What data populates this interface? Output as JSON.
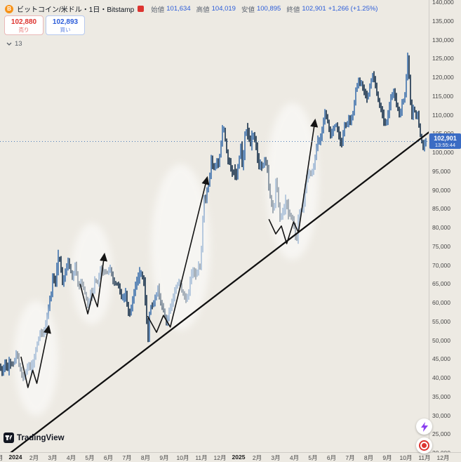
{
  "header": {
    "symbol_title": "ビットコイン/米ドル・1日・Bitstamp",
    "ohlc": {
      "open_label": "始値",
      "open": "101,634",
      "high_label": "高値",
      "high": "104,019",
      "low_label": "安値",
      "low": "100,895",
      "close_label": "終値",
      "close": "102,901",
      "change": "+1,266 (+1.25%)"
    },
    "sell_button": {
      "price": "102,880",
      "label": "売り"
    },
    "buy_button": {
      "price": "102,893",
      "label": "買い"
    },
    "spread": "13"
  },
  "price_axis": {
    "labels": [
      "140,000",
      "135,000",
      "130,000",
      "125,000",
      "120,000",
      "115,000",
      "110,000",
      "105,000",
      "100,000",
      "95,000",
      "90,000",
      "85,000",
      "80,000",
      "75,000",
      "70,000",
      "65,000",
      "60,000",
      "55,000",
      "50,000",
      "45,000",
      "40,000",
      "35,000",
      "30,000",
      "25,000",
      "20,000"
    ],
    "current_price": "102,901",
    "countdown": "13:55:44"
  },
  "time_axis": {
    "labels": [
      {
        "t": -1,
        "label": "12月"
      },
      {
        "t": 0,
        "label": "2024",
        "bold": true
      },
      {
        "t": 1,
        "label": "2月"
      },
      {
        "t": 2,
        "label": "3月"
      },
      {
        "t": 3,
        "label": "4月"
      },
      {
        "t": 4,
        "label": "5月"
      },
      {
        "t": 5,
        "label": "6月"
      },
      {
        "t": 6,
        "label": "7月"
      },
      {
        "t": 7,
        "label": "8月"
      },
      {
        "t": 8,
        "label": "9月"
      },
      {
        "t": 9,
        "label": "10月"
      },
      {
        "t": 10,
        "label": "11月"
      },
      {
        "t": 11,
        "label": "12月"
      },
      {
        "t": 12,
        "label": "2025",
        "bold": true
      },
      {
        "t": 13,
        "label": "2月"
      },
      {
        "t": 14,
        "label": "3月"
      },
      {
        "t": 15,
        "label": "4月"
      },
      {
        "t": 16,
        "label": "5月"
      },
      {
        "t": 17,
        "label": "6月"
      },
      {
        "t": 18,
        "label": "7月"
      },
      {
        "t": 19,
        "label": "8月"
      },
      {
        "t": 20,
        "label": "9月"
      },
      {
        "t": 21,
        "label": "10月"
      },
      {
        "t": 22,
        "label": "11月"
      },
      {
        "t": 23,
        "label": "12月"
      }
    ]
  },
  "footer": {
    "logo_text": "TradingView"
  },
  "colors": {
    "background": "#edeae3",
    "candle_up": "#4a79b0",
    "candle_down": "#223a52",
    "trendline": "#101010",
    "annotation": "#141414",
    "ellipse_fill": "#ffffff",
    "price_line": "#4a7ab8",
    "badge_blue": "#3b6cc4",
    "sell_red": "#dd3430",
    "buy_blue": "#2b5cd9",
    "value_blue": "#2b5cd9",
    "bitcoin_orange": "#f7931a",
    "flash_purple": "#8a3ff0"
  },
  "chart_data": {
    "type": "candlestick",
    "symbol": "ビットコイン/米ドル (BTC/USD)",
    "interval": "1日",
    "exchange": "Bitstamp",
    "x_unit": "months_from_2024-01",
    "x_range": [
      -0.9,
      23.5
    ],
    "y_range_thousand_usd": [
      20,
      140
    ],
    "grid": false,
    "last_price": 102901,
    "series_close_k": [
      [
        -0.8,
        43.5
      ],
      [
        -0.65,
        41.2
      ],
      [
        -0.5,
        43.8
      ],
      [
        -0.35,
        42.6
      ],
      [
        -0.2,
        44.1
      ],
      [
        -0.1,
        43.3
      ],
      [
        0,
        44.2
      ],
      [
        0.15,
        46.9
      ],
      [
        0.3,
        42.6
      ],
      [
        0.5,
        39.6
      ],
      [
        0.65,
        42.1
      ],
      [
        0.8,
        43.4
      ],
      [
        0.9,
        42.6
      ],
      [
        1,
        43.1
      ],
      [
        1.2,
        48.2
      ],
      [
        1.4,
        52
      ],
      [
        1.6,
        51.8
      ],
      [
        1.8,
        57.1
      ],
      [
        1.9,
        60.4
      ],
      [
        2,
        62.4
      ],
      [
        2.1,
        68.3
      ],
      [
        2.2,
        63.9
      ],
      [
        2.35,
        72.1
      ],
      [
        2.5,
        70.8
      ],
      [
        2.6,
        64.9
      ],
      [
        2.75,
        68
      ],
      [
        2.9,
        71
      ],
      [
        3,
        69.6
      ],
      [
        3.15,
        66
      ],
      [
        3.3,
        70.6
      ],
      [
        3.45,
        63.9
      ],
      [
        3.6,
        65.7
      ],
      [
        3.75,
        63.8
      ],
      [
        3.9,
        60.6
      ],
      [
        4,
        58.3
      ],
      [
        4.1,
        62.9
      ],
      [
        4.2,
        61.5
      ],
      [
        4.35,
        66.2
      ],
      [
        4.5,
        65.2
      ],
      [
        4.65,
        69.1
      ],
      [
        4.8,
        67.9
      ],
      [
        4.9,
        68.5
      ],
      [
        5,
        67.7
      ],
      [
        5.15,
        69.6
      ],
      [
        5.3,
        66
      ],
      [
        5.45,
        65
      ],
      [
        5.6,
        64.9
      ],
      [
        5.75,
        61.8
      ],
      [
        5.9,
        60.9
      ],
      [
        6,
        62.8
      ],
      [
        6.1,
        58.1
      ],
      [
        6.2,
        56.7
      ],
      [
        6.35,
        59.8
      ],
      [
        6.5,
        64.1
      ],
      [
        6.65,
        66.5
      ],
      [
        6.8,
        68.2
      ],
      [
        6.9,
        66.8
      ],
      [
        7,
        64.6
      ],
      [
        7.1,
        58.2
      ],
      [
        7.2,
        49.3
      ],
      [
        7.3,
        58.7
      ],
      [
        7.45,
        59.4
      ],
      [
        7.6,
        61.2
      ],
      [
        7.75,
        64.1
      ],
      [
        7.9,
        59.2
      ],
      [
        8,
        59.1
      ],
      [
        8.1,
        56.5
      ],
      [
        8.2,
        54.3
      ],
      [
        8.35,
        58.1
      ],
      [
        8.5,
        60
      ],
      [
        8.65,
        63.2
      ],
      [
        8.8,
        65.2
      ],
      [
        8.9,
        65.9
      ],
      [
        9,
        63.3
      ],
      [
        9.1,
        62.2
      ],
      [
        9.25,
        60.8
      ],
      [
        9.4,
        62.7
      ],
      [
        9.5,
        67.4
      ],
      [
        9.65,
        68.4
      ],
      [
        9.8,
        67
      ],
      [
        9.9,
        69.9
      ],
      [
        10,
        69.4
      ],
      [
        10.1,
        76
      ],
      [
        10.2,
        88
      ],
      [
        10.3,
        87.3
      ],
      [
        10.4,
        90.5
      ],
      [
        10.5,
        92.3
      ],
      [
        10.6,
        98.3
      ],
      [
        10.7,
        96
      ],
      [
        10.8,
        95.9
      ],
      [
        10.9,
        97.7
      ],
      [
        11,
        96.4
      ],
      [
        11.1,
        101.1
      ],
      [
        11.2,
        106.1
      ],
      [
        11.3,
        106.1
      ],
      [
        11.4,
        101.4
      ],
      [
        11.5,
        97.5
      ],
      [
        11.6,
        97.8
      ],
      [
        11.7,
        94.2
      ],
      [
        11.85,
        95.2
      ],
      [
        11.95,
        93.4
      ],
      [
        12,
        94.6
      ],
      [
        12.1,
        98.3
      ],
      [
        12.2,
        102.2
      ],
      [
        12.3,
        94.5
      ],
      [
        12.4,
        104.8
      ],
      [
        12.55,
        106.1
      ],
      [
        12.7,
        102.1
      ],
      [
        12.85,
        105
      ],
      [
        13,
        102.4
      ],
      [
        13.1,
        98
      ],
      [
        13.2,
        96.6
      ],
      [
        13.35,
        96.1
      ],
      [
        13.5,
        98.3
      ],
      [
        13.6,
        96.3
      ],
      [
        13.75,
        88.7
      ],
      [
        13.9,
        84.7
      ],
      [
        14,
        86
      ],
      [
        14.1,
        94.2
      ],
      [
        14.2,
        86.8
      ],
      [
        14.3,
        82.5
      ],
      [
        14.45,
        84
      ],
      [
        14.6,
        86.8
      ],
      [
        14.75,
        84.3
      ],
      [
        14.9,
        82.6
      ],
      [
        15,
        82.5
      ],
      [
        15.1,
        78.4
      ],
      [
        15.2,
        76.3
      ],
      [
        15.3,
        83.5
      ],
      [
        15.45,
        84.5
      ],
      [
        15.6,
        87.5
      ],
      [
        15.75,
        93.7
      ],
      [
        15.9,
        94.6
      ],
      [
        16,
        94.2
      ],
      [
        16.15,
        96.9
      ],
      [
        16.3,
        103.2
      ],
      [
        16.45,
        102.9
      ],
      [
        16.6,
        106.8
      ],
      [
        16.7,
        110.7
      ],
      [
        16.85,
        108.9
      ],
      [
        16.95,
        105.6
      ],
      [
        17,
        104.6
      ],
      [
        17.15,
        105.8
      ],
      [
        17.3,
        107.8
      ],
      [
        17.45,
        104.9
      ],
      [
        17.6,
        101.6
      ],
      [
        17.75,
        107.1
      ],
      [
        17.9,
        107.4
      ],
      [
        18,
        108.9
      ],
      [
        18.1,
        108
      ],
      [
        18.25,
        111
      ],
      [
        18.4,
        117.5
      ],
      [
        18.55,
        119.1
      ],
      [
        18.7,
        118
      ],
      [
        18.85,
        115.8
      ],
      [
        19,
        114.2
      ],
      [
        19.15,
        118
      ],
      [
        19.3,
        121
      ],
      [
        19.45,
        117.4
      ],
      [
        19.6,
        113.4
      ],
      [
        19.75,
        111.2
      ],
      [
        19.9,
        108.2
      ],
      [
        20,
        107.3
      ],
      [
        20.15,
        111.2
      ],
      [
        20.3,
        115.4
      ],
      [
        20.45,
        116
      ],
      [
        20.6,
        112
      ],
      [
        20.75,
        109.6
      ],
      [
        20.9,
        114
      ],
      [
        21,
        114
      ],
      [
        21.1,
        120.6
      ],
      [
        21.18,
        126.2
      ],
      [
        21.28,
        116.5
      ],
      [
        21.38,
        108.9
      ],
      [
        21.5,
        112.8
      ],
      [
        21.6,
        108.8
      ],
      [
        21.7,
        110.5
      ],
      [
        21.8,
        106
      ],
      [
        21.9,
        103.2
      ],
      [
        22,
        101.2
      ],
      [
        22.1,
        102.9
      ]
    ],
    "annotations": {
      "trendline": {
        "from": {
          "t": -0.82,
          "p": 17.9
        },
        "to": {
          "t": 22.3,
          "p": 105.6
        }
      },
      "current_price_line": {
        "p": 102.901
      },
      "zigzags": [
        {
          "points": [
            [
              0.3,
              45.6
            ],
            [
              0.67,
              37.4
            ],
            [
              0.93,
              42.0
            ],
            [
              1.15,
              38.5
            ],
            [
              1.78,
              53.5
            ]
          ]
        },
        {
          "points": [
            [
              3.48,
              65.0
            ],
            [
              3.89,
              57.0
            ],
            [
              4.15,
              62.4
            ],
            [
              4.41,
              58.9
            ],
            [
              4.78,
              72.7
            ]
          ]
        },
        {
          "points": [
            [
              7.11,
              56.4
            ],
            [
              7.59,
              52.1
            ],
            [
              7.96,
              56.6
            ],
            [
              8.33,
              53.5
            ],
            [
              10.3,
              93.1
            ]
          ]
        },
        {
          "points": [
            [
              13.63,
              82.2
            ],
            [
              14.0,
              78.3
            ],
            [
              14.3,
              80.4
            ],
            [
              14.59,
              75.7
            ],
            [
              14.96,
              81.5
            ],
            [
              15.22,
              78.7
            ],
            [
              16.11,
              108.4
            ]
          ]
        }
      ],
      "highlight_ellipses": [
        {
          "t": 1.11,
          "p": 45.2,
          "rt": 1.19,
          "rp": 15.3
        },
        {
          "t": 4.11,
          "p": 67.7,
          "rt": 1.11,
          "rp": 13.5
        },
        {
          "t": 8.89,
          "p": 74.8,
          "rt": 1.59,
          "rp": 22.1
        },
        {
          "t": 14.89,
          "p": 92.3,
          "rt": 1.41,
          "rp": 20.9
        }
      ]
    }
  }
}
